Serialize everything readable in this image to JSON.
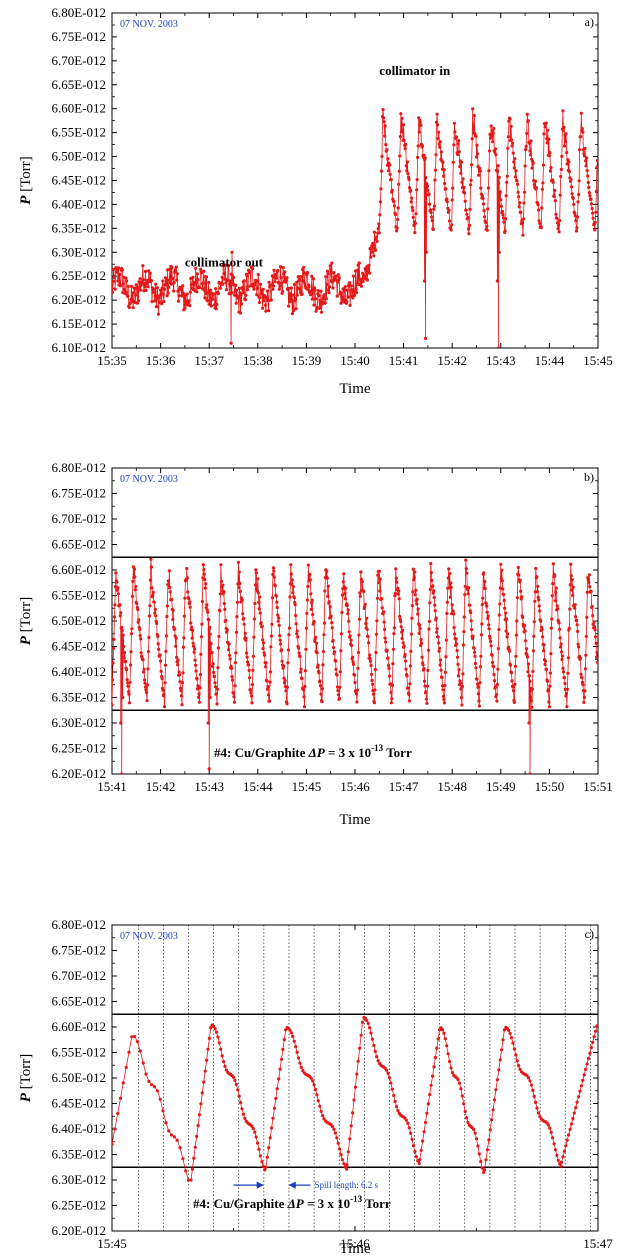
{
  "chart_data": [
    {
      "type": "scatter",
      "panel_label": "a)",
      "date_label": "07 NOV. 2003",
      "xlabel": "Time",
      "ylabel_sym": "P",
      "ylabel_unit": "[Torr]",
      "xticks": [
        "15:35",
        "15:36",
        "15:37",
        "15:38",
        "15:39",
        "15:40",
        "15:41",
        "15:42",
        "15:43",
        "15:44",
        "15:45"
      ],
      "yticks": [
        "6.10E-012",
        "6.15E-012",
        "6.20E-012",
        "6.25E-012",
        "6.30E-012",
        "6.35E-012",
        "6.40E-012",
        "6.45E-012",
        "6.50E-012",
        "6.55E-012",
        "6.60E-012",
        "6.65E-012",
        "6.70E-012",
        "6.75E-012",
        "6.80E-012"
      ],
      "xlim": [
        0,
        10
      ],
      "ylim": [
        6.1,
        6.8
      ],
      "y_unit_exponent": -12,
      "annotations": [
        "collimator out",
        "collimator in"
      ],
      "series_color": "#e41a1a",
      "segments": [
        {
          "from": 0.0,
          "to": 5.2,
          "base": 6.2,
          "amp": 0.035,
          "period": 0.09,
          "noise": 0.015
        },
        {
          "from": 5.2,
          "to": 5.5,
          "base": 6.3,
          "amp": 0.03,
          "period": 0.1,
          "noise": 0.01
        },
        {
          "from": 5.5,
          "to": 10.0,
          "low": 6.34,
          "high": 6.62,
          "period": 0.37
        }
      ],
      "dips": [
        [
          2.45,
          6.11
        ],
        [
          6.45,
          6.12
        ],
        [
          7.95,
          6.1
        ]
      ]
    },
    {
      "type": "scatter",
      "panel_label": "b)",
      "date_label": "07 NOV. 2003",
      "xlabel": "Time",
      "ylabel_sym": "P",
      "ylabel_unit": "[Torr]",
      "xticks": [
        "15:41",
        "15:42",
        "15:43",
        "15:44",
        "15:45",
        "15:46",
        "15:47",
        "15:48",
        "15:49",
        "15:50",
        "15:51"
      ],
      "yticks": [
        "6.20E-012",
        "6.25E-012",
        "6.30E-012",
        "6.35E-012",
        "6.40E-012",
        "6.45E-012",
        "6.50E-012",
        "6.55E-012",
        "6.60E-012",
        "6.65E-012",
        "6.70E-012",
        "6.75E-012",
        "6.80E-012"
      ],
      "xlim": [
        0,
        10
      ],
      "ylim": [
        6.2,
        6.8
      ],
      "y_unit_exponent": -12,
      "hlines": [
        6.625,
        6.325
      ],
      "annotation_prefix": "#4: Cu/Graphite",
      "annotation_delta": "ΔP = 3 x 10",
      "annotation_exp": "-13",
      "annotation_unit": "Torr",
      "series_color": "#e41a1a",
      "low": 6.34,
      "high": 6.6,
      "period": 0.36,
      "dips": [
        [
          0.2,
          6.2
        ],
        [
          2.0,
          6.21
        ],
        [
          8.6,
          6.2
        ]
      ]
    },
    {
      "type": "line",
      "panel_label": "c)",
      "date_label": "07 NOV. 2003",
      "xlabel": "Time",
      "ylabel_sym": "P",
      "ylabel_unit": "[Torr]",
      "xticks": [
        "15:45",
        "15:46",
        "15:47"
      ],
      "yticks": [
        "6.20E-012",
        "6.25E-012",
        "6.30E-012",
        "6.35E-012",
        "6.40E-012",
        "6.45E-012",
        "6.50E-012",
        "6.55E-012",
        "6.60E-012",
        "6.65E-012",
        "6.70E-012",
        "6.75E-012",
        "6.80E-012"
      ],
      "xlim": [
        0,
        120
      ],
      "ylim": [
        6.2,
        6.8
      ],
      "y_unit_exponent": -12,
      "hlines": [
        6.625,
        6.325
      ],
      "spill_lines_s": [
        6.5,
        12.7,
        18.9,
        25.1,
        31.3,
        37.5,
        43.7,
        49.9,
        56.1,
        62.3,
        68.5,
        74.7,
        80.9,
        87.1,
        93.3,
        99.5,
        105.7,
        111.9,
        118.1
      ],
      "spill_label": "Spill length: 6.2 s",
      "annotation_prefix": "#4: Cu/Graphite",
      "annotation_delta": "ΔP = 3 x 10",
      "annotation_exp": "-13",
      "annotation_unit": "Torr",
      "series_color": "#e41a1a",
      "cycles": [
        {
          "t0": 0,
          "tpeak": 5,
          "tmin": 19.5,
          "peak": 6.585,
          "min": 6.3
        },
        {
          "t0": 19.5,
          "tpeak": 24.5,
          "tmin": 38,
          "peak": 6.605,
          "min": 6.325
        },
        {
          "t0": 38,
          "tpeak": 43,
          "tmin": 58,
          "peak": 6.6,
          "min": 6.33
        },
        {
          "t0": 58,
          "tpeak": 62,
          "tmin": 76,
          "peak": 6.62,
          "min": 6.34
        },
        {
          "t0": 76,
          "tpeak": 81,
          "tmin": 92,
          "peak": 6.6,
          "min": 6.32
        },
        {
          "t0": 92,
          "tpeak": 97,
          "tmin": 111,
          "peak": 6.6,
          "min": 6.335
        },
        {
          "t0": 111,
          "tpeak": 120,
          "tmin": 120,
          "peak": 6.61,
          "min": 6.34
        }
      ]
    }
  ]
}
